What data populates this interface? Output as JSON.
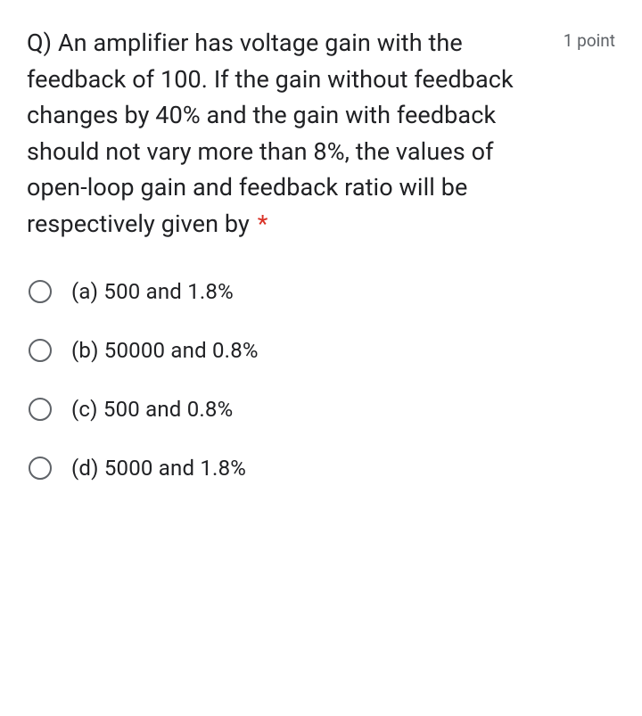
{
  "question": {
    "text": "Q) An amplifier has voltage gain with the feedback of 100. If the gain without feedback changes by 40% and the gain with feedback should not vary more than 8%, the values of open-loop gain and feedback ratio will be respectively given by",
    "required_marker": "*",
    "points_label": "1 point"
  },
  "options": [
    {
      "label": "(a) 500 and 1.8%"
    },
    {
      "label": "(b) 50000 and 0.8%"
    },
    {
      "label": "(c) 500 and 0.8%"
    },
    {
      "label": "(d) 5000 and 1.8%"
    }
  ],
  "colors": {
    "text_primary": "#202124",
    "text_secondary": "#5f6368",
    "required": "#d93025",
    "radio_border": "#5f6368",
    "background": "#ffffff"
  },
  "typography": {
    "question_fontsize": 27,
    "points_fontsize": 19,
    "option_fontsize": 24,
    "line_height": 1.5
  }
}
